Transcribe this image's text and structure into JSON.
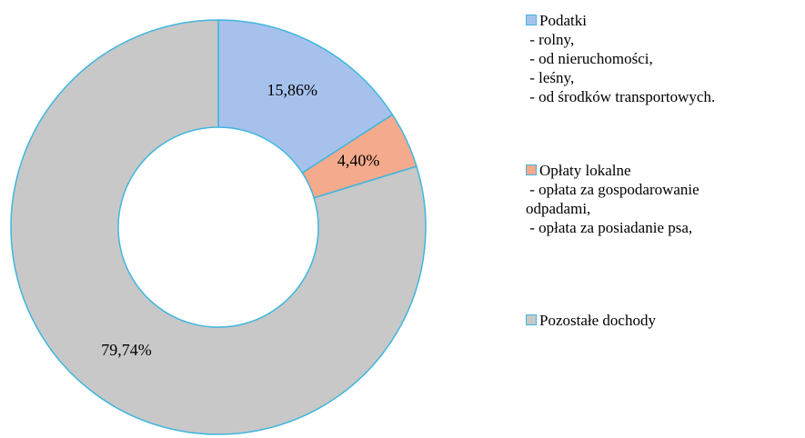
{
  "chart_data": {
    "type": "donut",
    "categories": [
      "Podatki\n - rolny,\n - od nieruchomości,\n - leśny,\n - od środków transportowych.",
      "Opłaty lokalne\n - opłata za gospodarowanie\nodpadami,\n - opłata za posiadanie psa,",
      "Pozostałe dochody"
    ],
    "values": [
      15.86,
      4.4,
      79.74
    ],
    "value_labels": [
      "15,86%",
      "4,40%",
      "79,74%"
    ],
    "colors": [
      "#a6c2ec",
      "#f4aa8c",
      "#c8c8c8"
    ],
    "edge_color": "#3fb6de"
  }
}
